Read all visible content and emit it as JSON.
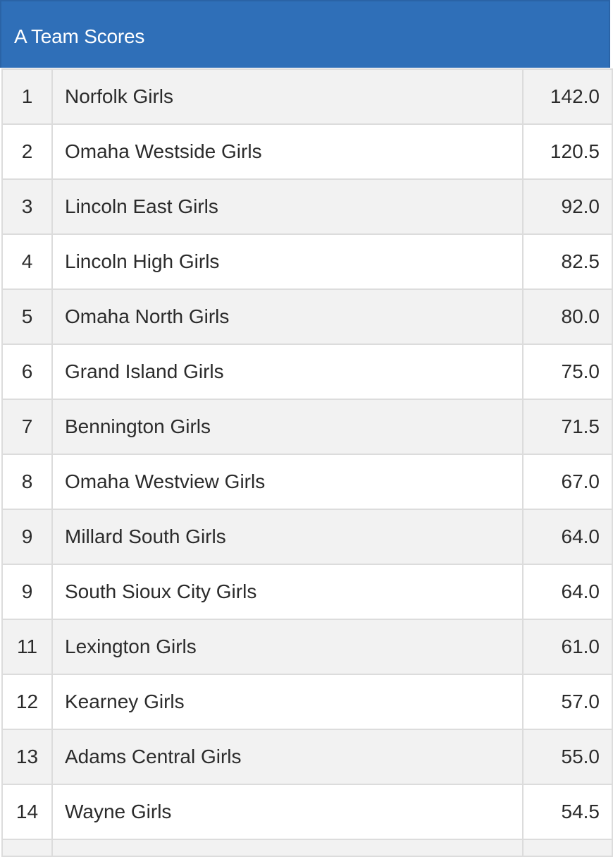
{
  "panel": {
    "title": "A Team Scores"
  },
  "colors": {
    "header_bg": "#2f6fb8",
    "header_text": "#ffffff",
    "row_odd": "#f2f2f2",
    "row_even": "#ffffff",
    "grid_line": "#dcdcdc"
  },
  "table": {
    "rows": [
      {
        "rank": "1",
        "team": "Norfolk Girls",
        "score": "142.0"
      },
      {
        "rank": "2",
        "team": "Omaha Westside Girls",
        "score": "120.5"
      },
      {
        "rank": "3",
        "team": "Lincoln East Girls",
        "score": "92.0"
      },
      {
        "rank": "4",
        "team": "Lincoln High Girls",
        "score": "82.5"
      },
      {
        "rank": "5",
        "team": "Omaha North Girls",
        "score": "80.0"
      },
      {
        "rank": "6",
        "team": "Grand Island Girls",
        "score": "75.0"
      },
      {
        "rank": "7",
        "team": "Bennington Girls",
        "score": "71.5"
      },
      {
        "rank": "8",
        "team": "Omaha Westview Girls",
        "score": "67.0"
      },
      {
        "rank": "9",
        "team": "Millard South Girls",
        "score": "64.0"
      },
      {
        "rank": "9",
        "team": "South Sioux City Girls",
        "score": "64.0"
      },
      {
        "rank": "11",
        "team": "Lexington Girls",
        "score": "61.0"
      },
      {
        "rank": "12",
        "team": "Kearney Girls",
        "score": "57.0"
      },
      {
        "rank": "13",
        "team": "Adams Central Girls",
        "score": "55.0"
      },
      {
        "rank": "14",
        "team": "Wayne Girls",
        "score": "54.5"
      }
    ]
  }
}
